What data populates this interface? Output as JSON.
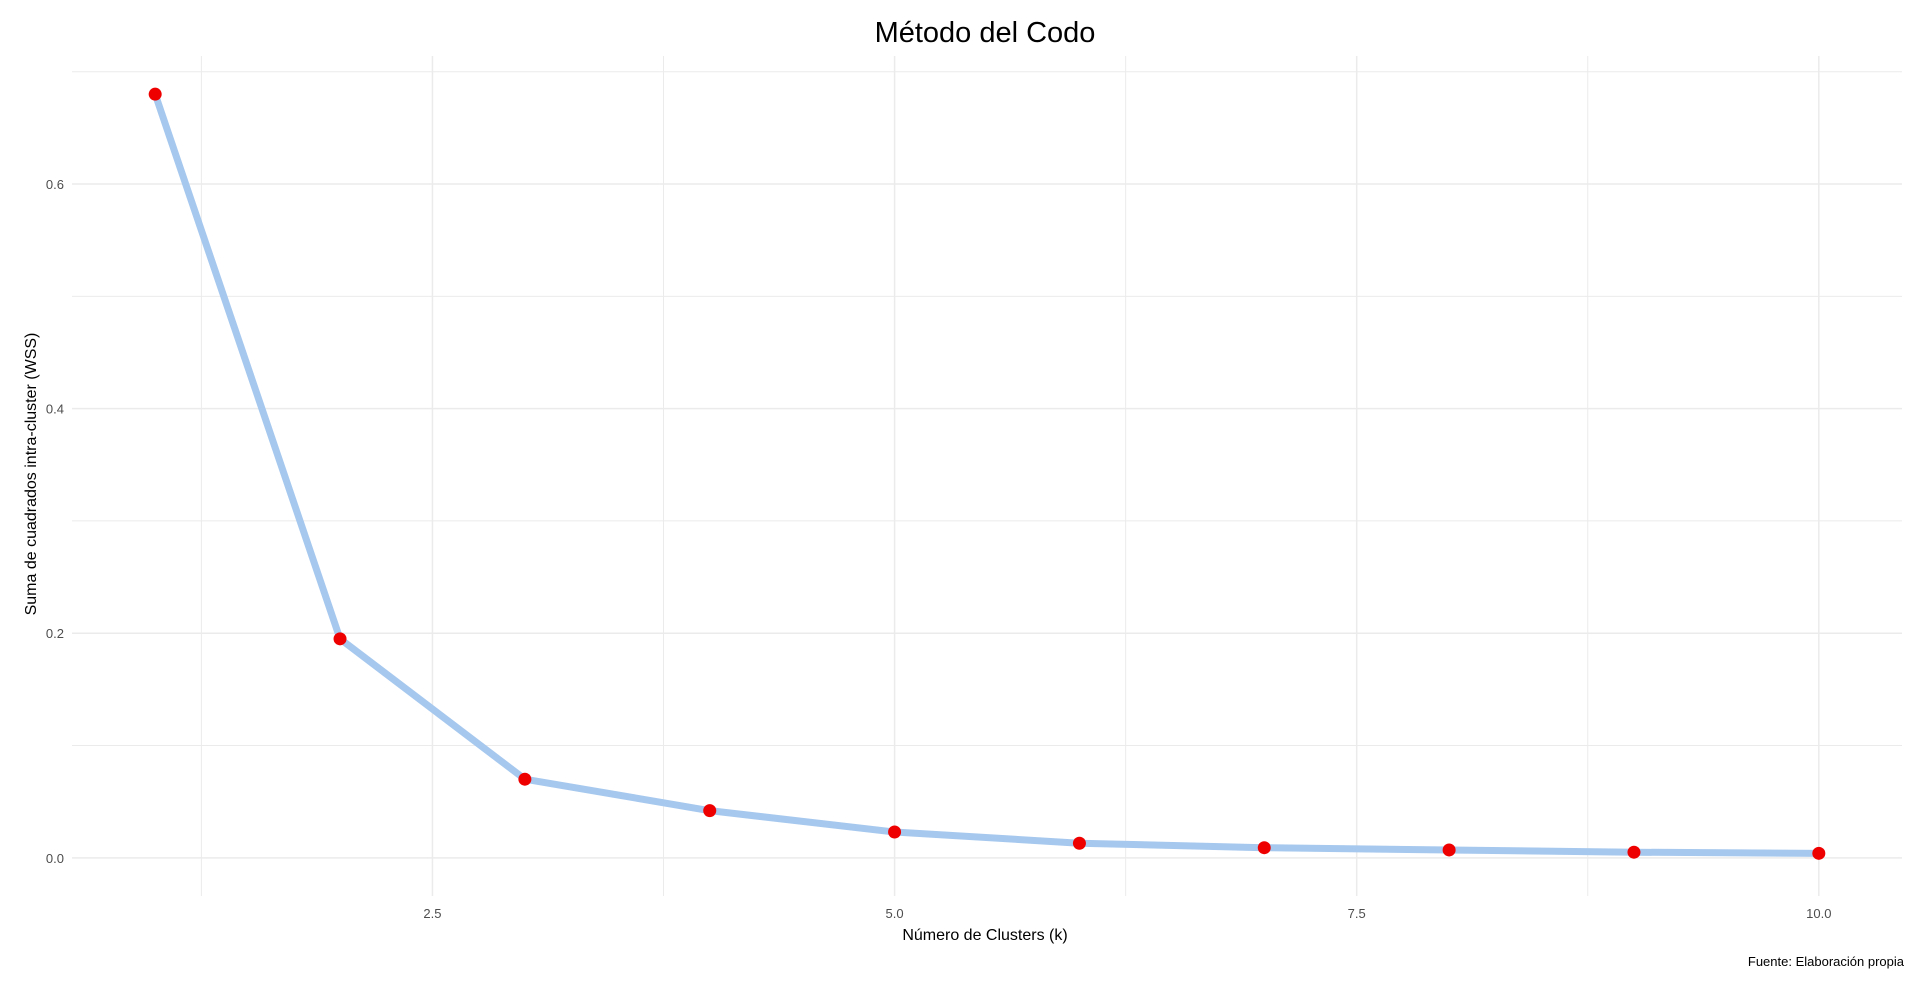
{
  "chart_data": {
    "type": "line",
    "title": "Método del Codo",
    "xlabel": "Número de Clusters (k)",
    "ylabel": "Suma de cuadrados intra-cluster (WSS)",
    "caption": "Fuente: Elaboración propia",
    "x": [
      1,
      2,
      3,
      4,
      5,
      6,
      7,
      8,
      9,
      10
    ],
    "y": [
      0.68,
      0.195,
      0.07,
      0.042,
      0.023,
      0.013,
      0.009,
      0.007,
      0.005,
      0.004
    ],
    "xlim": [
      0.55,
      10.45
    ],
    "ylim": [
      -0.034,
      0.714
    ],
    "x_ticks": [
      2.5,
      5.0,
      7.5,
      10.0
    ],
    "x_tick_labels": [
      "2.5",
      "5.0",
      "7.5",
      "10.0"
    ],
    "y_ticks": [
      0.0,
      0.2,
      0.4,
      0.6
    ],
    "y_tick_labels": [
      "0.0",
      "0.2",
      "0.4",
      "0.6"
    ],
    "grid": true,
    "line_color": "#a6c8ee",
    "point_color": "#ee0000",
    "grid_color": "#ebebeb"
  }
}
